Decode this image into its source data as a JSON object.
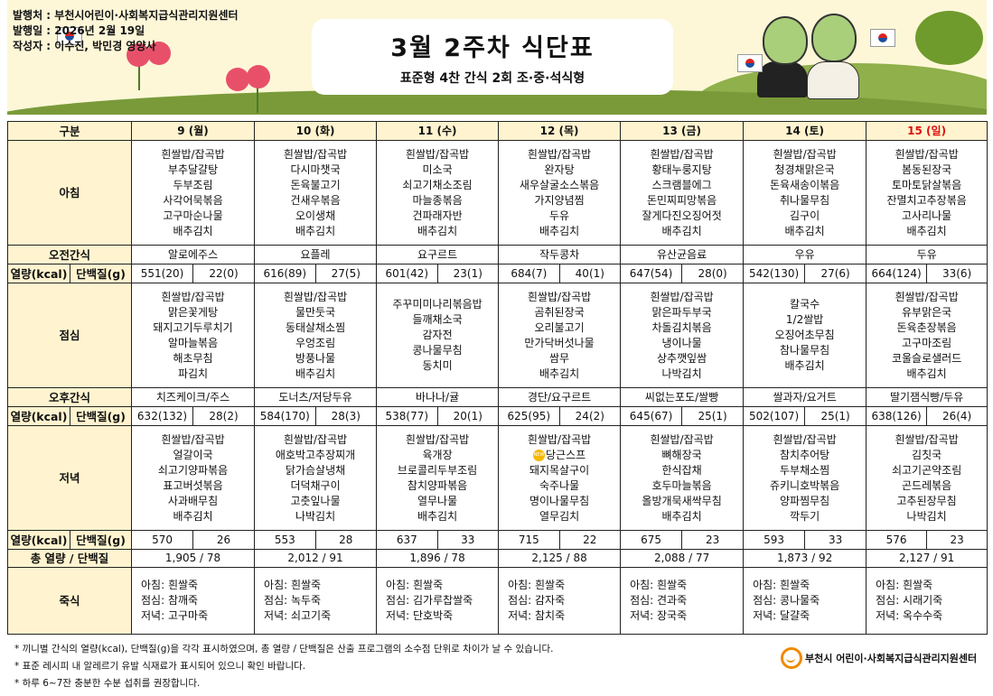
{
  "header": {
    "publisher_label": "발행처 : 부천시어린이·사회복지급식관리지원센터",
    "date_label": "발행일 : 2026년 2월 19일",
    "author_label": "작성자 : 이수진, 박민경 영양사",
    "title": "3월 2주차 식단표",
    "subtitle": "표준형 4찬 간식 2회 조·중·석식형"
  },
  "table": {
    "corner": "구분",
    "row_labels": {
      "breakfast": "아침",
      "am_snack": "오전간식",
      "kcal": "열량(kcal)",
      "protein": "단백질(g)",
      "lunch": "점심",
      "pm_snack": "오후간식",
      "dinner": "저녁",
      "total": "총 열량 / 단백질",
      "porridge": "죽식"
    },
    "days": [
      {
        "label": "9 (월)",
        "holiday": false,
        "breakfast": [
          "흰쌀밥/잡곡밥",
          "부추달걀탕",
          "두부조림",
          "사각어묵볶음",
          "고구마순나물",
          "배추김치"
        ],
        "am_snack": "알로에주스",
        "bk_kcal": "551(20)",
        "bk_protein": "22(0)",
        "lunch": [
          "흰쌀밥/잡곡밥",
          "맑은꽃게탕",
          "돼지고기두루치기",
          "알마늘볶음",
          "해초무침",
          "파김치"
        ],
        "pm_snack": "치즈케이크/주스",
        "ln_kcal": "632(132)",
        "ln_protein": "28(2)",
        "dinner": [
          "흰쌀밥/잡곡밥",
          "얼갈이국",
          "쇠고기양파볶음",
          "표고버섯볶음",
          "사과배무침",
          "배추김치"
        ],
        "dn_kcal": "570",
        "dn_protein": "26",
        "total": "1,905  /  78",
        "porridge": [
          "아침: 흰쌀죽",
          "점심: 참깨죽",
          "저녁: 고구마죽"
        ]
      },
      {
        "label": "10 (화)",
        "holiday": false,
        "breakfast": [
          "흰쌀밥/잡곡밥",
          "다시마챗국",
          "돈육불고기",
          "건새우볶음",
          "오이생채",
          "배추김치"
        ],
        "am_snack": "요플레",
        "bk_kcal": "616(89)",
        "bk_protein": "27(5)",
        "lunch": [
          "흰쌀밥/잡곡밥",
          "물만둣국",
          "동태살채소찜",
          "우엉조림",
          "방풍나물",
          "배추김치"
        ],
        "pm_snack": "도너츠/저당두유",
        "ln_kcal": "584(170)",
        "ln_protein": "28(3)",
        "dinner": [
          "흰쌀밥/잡곡밥",
          "애호박고추장찌개",
          "닭가슴살냉채",
          "더덕채구이",
          "고춧잎나물",
          "나박김치"
        ],
        "dn_kcal": "553",
        "dn_protein": "28",
        "total": "2,012  /  91",
        "porridge": [
          "아침: 흰쌀죽",
          "점심: 녹두죽",
          "저녁: 쇠고기죽"
        ]
      },
      {
        "label": "11 (수)",
        "holiday": false,
        "breakfast": [
          "흰쌀밥/잡곡밥",
          "미소국",
          "쇠고기채소조림",
          "마늘종볶음",
          "건파래자반",
          "배추김치"
        ],
        "am_snack": "요구르트",
        "bk_kcal": "601(42)",
        "bk_protein": "23(1)",
        "lunch": [
          "주꾸미미나리볶음밥",
          "들깨채소국",
          "감자전",
          "콩나물무침",
          "동치미"
        ],
        "pm_snack": "바나나/귤",
        "ln_kcal": "538(77)",
        "ln_protein": "20(1)",
        "dinner": [
          "흰쌀밥/잡곡밥",
          "육개장",
          "브로콜리두부조림",
          "참치양파볶음",
          "열무나물",
          "배추김치"
        ],
        "dn_kcal": "637",
        "dn_protein": "33",
        "total": "1,896  /  78",
        "porridge": [
          "아침: 흰쌀죽",
          "점심: 김가루찹쌀죽",
          "저녁: 단호박죽"
        ]
      },
      {
        "label": "12 (목)",
        "holiday": false,
        "breakfast": [
          "흰쌀밥/잡곡밥",
          "완자탕",
          "새우살굴소스볶음",
          "가지양념찜",
          "두유",
          "배추김치"
        ],
        "am_snack": "작두콩차",
        "bk_kcal": "684(7)",
        "bk_protein": "40(1)",
        "lunch": [
          "흰쌀밥/잡곡밥",
          "곰취된장국",
          "오리불고기",
          "만가닥버섯나물",
          "쌈무",
          "배추김치"
        ],
        "pm_snack": "경단/요구르트",
        "ln_kcal": "625(95)",
        "ln_protein": "24(2)",
        "dinner": [
          "흰쌀밥/잡곡밥",
          "당근스프",
          "돼지목살구이",
          "숙주나물",
          "명이나물무침",
          "열무김치"
        ],
        "new_badge": "NEW",
        "dn_kcal": "715",
        "dn_protein": "22",
        "total": "2,125  /  88",
        "porridge": [
          "아침:  흰쌀죽",
          "점심:  감자죽",
          "저녁:  참치죽"
        ]
      },
      {
        "label": "13 (금)",
        "holiday": false,
        "breakfast": [
          "흰쌀밥/잡곡밥",
          "황태누룽지탕",
          "스크램블에그",
          "돈민찌피망볶음",
          "잘게다진오징어젓",
          "배추김치"
        ],
        "am_snack": "유산균음료",
        "bk_kcal": "647(54)",
        "bk_protein": "28(0)",
        "lunch": [
          "흰쌀밥/잡곡밥",
          "맑은파두부국",
          "차돌김치볶음",
          "냉이나물",
          "상추깻잎쌈",
          "나박김치"
        ],
        "pm_snack": "씨없는포도/쌀빵",
        "ln_kcal": "645(67)",
        "ln_protein": "25(1)",
        "dinner": [
          "흰쌀밥/잡곡밥",
          "뼈해장국",
          "한식잡채",
          "호두마늘볶음",
          "올방개묵새싹무침",
          "배추김치"
        ],
        "dn_kcal": "675",
        "dn_protein": "23",
        "total": "2,088  /  77",
        "porridge": [
          "아침:  흰쌀죽",
          "점심:  견과죽",
          "저녁:  장국죽"
        ]
      },
      {
        "label": "14 (토)",
        "holiday": false,
        "breakfast": [
          "흰쌀밥/잡곡밥",
          "청경채맑은국",
          "돈육새송이볶음",
          "취나물무침",
          "김구이",
          "배추김치"
        ],
        "am_snack": "우유",
        "bk_kcal": "542(130)",
        "bk_protein": "27(6)",
        "lunch": [
          "칼국수",
          "1/2쌀밥",
          "오징어초무침",
          "참나물무침",
          "배추김치"
        ],
        "pm_snack": "쌀과자/요거트",
        "ln_kcal": "502(107)",
        "ln_protein": "25(1)",
        "dinner": [
          "흰쌀밥/잡곡밥",
          "참치추어탕",
          "두부채소찜",
          "쥬키니호박볶음",
          "양파찜무침",
          "깍두기"
        ],
        "dn_kcal": "593",
        "dn_protein": "33",
        "total": "1,873  /  92",
        "porridge": [
          "아침: 흰쌀죽",
          "점심: 콩나물죽",
          "저녁: 달걀죽"
        ]
      },
      {
        "label": "15 (일)",
        "holiday": true,
        "breakfast": [
          "흰쌀밥/잡곡밥",
          "봄동된장국",
          "토마토닭살볶음",
          "잔멸치고추장볶음",
          "고사리나물",
          "배추김치"
        ],
        "am_snack": "두유",
        "bk_kcal": "664(124)",
        "bk_protein": "33(6)",
        "lunch": [
          "흰쌀밥/잡곡밥",
          "유부맑은국",
          "돈육춘장볶음",
          "고구마조림",
          "코울슬로샐러드",
          "배추김치"
        ],
        "pm_snack": "딸기잼식빵/두유",
        "ln_kcal": "638(126)",
        "ln_protein": "26(4)",
        "dinner": [
          "흰쌀밥/잡곡밥",
          "김칫국",
          "쇠고기곤약조림",
          "곤드레볶음",
          "고추된장무침",
          "나박김치"
        ],
        "dn_kcal": "576",
        "dn_protein": "23",
        "total": "2,127  /  91",
        "porridge": [
          "아침: 흰쌀죽",
          "점심: 시래기죽",
          "저녁:  옥수수죽"
        ]
      }
    ]
  },
  "notes": [
    "* 끼니별 간식의 열량(kcal), 단백질(g)을 각각 표시하였으며, 총 열량 / 단백질은 산출 프로그램의 소수점 단위로 차이가 날 수 있습니다.",
    "* 표준 레시피 내 알레르기 유발 식재료가 표시되어 있으니 확인 바랍니다.",
    "* 하루 6~7잔 충분한 수분 섭취를 권장합니다."
  ],
  "footer_logo": "부천시 어린이·사회복지급식관리지원센터",
  "colors": {
    "header_bg": "#fff4cf",
    "holiday": "#e01010",
    "logo": "#f08a00"
  }
}
